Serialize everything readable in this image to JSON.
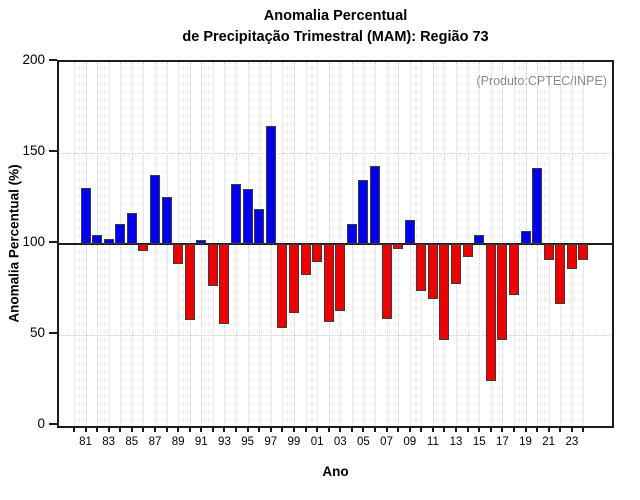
{
  "title": {
    "line1": "Anomalia Percentual",
    "line2": "de Precipitação Trimestral (MAM): Região 73"
  },
  "annotation": "(Produto:CPTEC/INPE)",
  "chart_data": {
    "type": "bar",
    "title": "Anomalia Percentual de Precipitação Trimestral (MAM): Região 73",
    "xlabel": "Ano",
    "ylabel": "Anomalia Percentual (%)",
    "ylim": [
      0,
      200
    ],
    "yticks": [
      0,
      50,
      100,
      150,
      200
    ],
    "baseline": 100,
    "grid": "dotted",
    "legend_position": "none",
    "x": [
      1981,
      1982,
      1983,
      1984,
      1985,
      1986,
      1987,
      1988,
      1989,
      1990,
      1991,
      1992,
      1993,
      1994,
      1995,
      1996,
      1997,
      1998,
      1999,
      2000,
      2001,
      2002,
      2003,
      2004,
      2005,
      2006,
      2007,
      2008,
      2009,
      2010,
      2011,
      2012,
      2013,
      2014,
      2015,
      2016,
      2017,
      2018,
      2019,
      2020,
      2021,
      2022,
      2023,
      2024
    ],
    "values": [
      131,
      105,
      103,
      111,
      117,
      96,
      138,
      126,
      89,
      58,
      102,
      77,
      56,
      133,
      130,
      119,
      165,
      54,
      62,
      83,
      90,
      57,
      63,
      111,
      135,
      143,
      59,
      97,
      113,
      74,
      70,
      47,
      78,
      93,
      105,
      25,
      47,
      72,
      107,
      142,
      91,
      67,
      86,
      91
    ],
    "xtick_labels": [
      "81",
      "83",
      "85",
      "87",
      "89",
      "91",
      "93",
      "95",
      "97",
      "99",
      "01",
      "03",
      "05",
      "07",
      "09",
      "11",
      "13",
      "15",
      "17",
      "19",
      "21",
      "23"
    ],
    "colors": {
      "above_baseline": "#0000f2",
      "below_baseline": "#f20000",
      "annotation": "#8a8a8a",
      "gridline": "#d2d2d2",
      "axis": "#1c1c1c"
    }
  }
}
